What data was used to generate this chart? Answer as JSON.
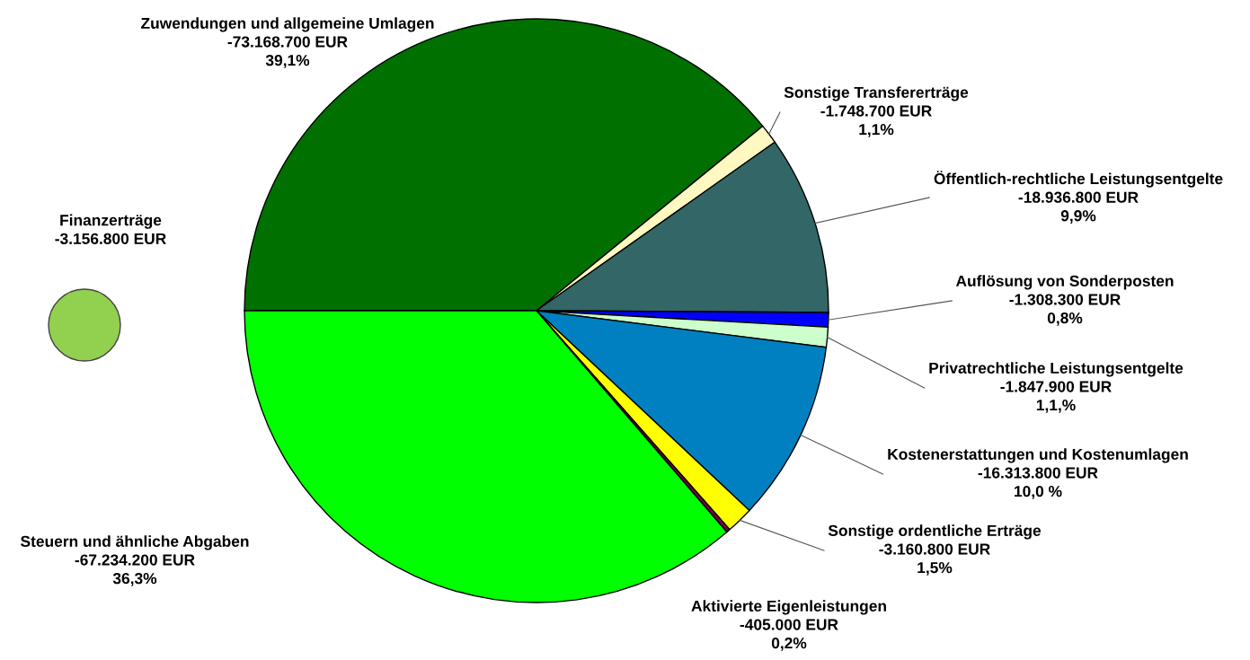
{
  "chart_data": {
    "type": "pie",
    "categories": [
      "Zuwendungen und allgemeine Umlagen",
      "Sonstige Transfererträge",
      "Öffentlich-rechtliche Leistungsentgelte",
      "Auflösung von Sonderposten",
      "Privatrechtliche Leistungsentgelte",
      "Kostenerstattungen und Kostenumlagen",
      "Sonstige ordentliche Erträge",
      "Aktivierte Eigenleistungen",
      "Steuern und ähnliche Abgaben"
    ],
    "values": [
      39.1,
      1.1,
      9.9,
      0.8,
      1.1,
      10.0,
      1.5,
      0.2,
      36.3
    ],
    "colors": [
      "#007000",
      "#fff8c0",
      "#336666",
      "#0000ff",
      "#ccffcc",
      "#0080c0",
      "#ffff00",
      "#800040",
      "#00ff00"
    ],
    "value_labels": [
      "-73.168.700 EUR\n39,1%",
      "-1.748.700 EUR\n1,1%",
      "-18.936.800 EUR\n9,9%",
      "-1.308.300 EUR\n0,8%",
      "-1.847.900 EUR\n1,1,%",
      "-16.313.800 EUR\n10,0 %",
      "-3.160.800 EUR\n1,5%",
      "-405.000 EUR\n0,2%",
      "-67.234.200 EUR\n36,3%"
    ],
    "annotations": [
      "Finanzerträge\n-3.156.800 EUR"
    ]
  }
}
